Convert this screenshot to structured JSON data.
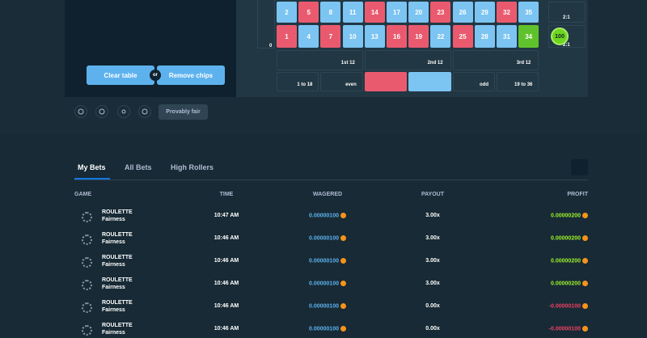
{
  "game": {
    "left_panel": {
      "buttons": [
        "Clear table",
        "Remove chips"
      ],
      "separator": "or"
    },
    "board": {
      "rows": [
        [
          {
            "label": 2,
            "color": "#7cc4f2"
          },
          {
            "label": 5,
            "color": "#ea5a6f"
          },
          {
            "label": 8,
            "color": "#7cc4f2"
          },
          {
            "label": 11,
            "color": "#7cc4f2"
          },
          {
            "label": 14,
            "color": "#ea5a6f"
          },
          {
            "label": 17,
            "color": "#7cc4f2"
          },
          {
            "label": 20,
            "color": "#7cc4f2"
          },
          {
            "label": 23,
            "color": "#ea5a6f"
          },
          {
            "label": 26,
            "color": "#7cc4f2"
          },
          {
            "label": 29,
            "color": "#7cc4f2"
          },
          {
            "label": 32,
            "color": "#ea5a6f"
          },
          {
            "label": 35,
            "color": "#7cc4f2"
          }
        ],
        [
          {
            "label": 1,
            "color": "#ea5a6f"
          },
          {
            "label": 4,
            "color": "#7cc4f2"
          },
          {
            "label": 7,
            "color": "#ea5a6f"
          },
          {
            "label": 10,
            "color": "#7cc4f2"
          },
          {
            "label": 13,
            "color": "#7cc4f2"
          },
          {
            "label": 16,
            "color": "#ea5a6f"
          },
          {
            "label": 19,
            "color": "#ea5a6f"
          },
          {
            "label": 22,
            "color": "#7cc4f2"
          },
          {
            "label": 25,
            "color": "#ea5a6f"
          },
          {
            "label": 28,
            "color": "#7cc4f2"
          },
          {
            "label": 31,
            "color": "#7cc4f2"
          },
          {
            "label": 34,
            "color": "#5fc22c"
          }
        ]
      ],
      "zero": "0",
      "column_labels": [
        "2:1",
        "2:1"
      ],
      "dozens": [
        "1st 12",
        "2nd 12",
        "3rd 12"
      ],
      "outside": [
        "1 to 18",
        "even",
        "odd",
        "19 to 36"
      ],
      "chip": "100"
    },
    "controls": {
      "fair_button": "Provably fair"
    }
  },
  "bets": {
    "tabs": [
      "My Bets",
      "All Bets",
      "High Rollers"
    ],
    "header": [
      "GAME",
      "TIME",
      "WAGERED",
      "PAYOUT",
      "PROFIT"
    ],
    "rows": [
      {
        "game": "ROULETTE",
        "detail": "Fairness",
        "time": "10:47 AM",
        "wagered": "0.00000100",
        "payout": "3.00x",
        "profit": "0.00000200"
      },
      {
        "game": "ROULETTE",
        "detail": "Fairness",
        "time": "10:46 AM",
        "wagered": "0.00000100",
        "payout": "3.00x",
        "profit": "0.00000200"
      },
      {
        "game": "ROULETTE",
        "detail": "Fairness",
        "time": "10:46 AM",
        "wagered": "0.00000100",
        "payout": "3.00x",
        "profit": "0.00000200"
      },
      {
        "game": "ROULETTE",
        "detail": "Fairness",
        "time": "10:46 AM",
        "wagered": "0.00000100",
        "payout": "3.00x",
        "profit": "0.00000200"
      },
      {
        "game": "ROULETTE",
        "detail": "Fairness",
        "time": "10:46 AM",
        "wagered": "0.00000100",
        "payout": "0.00x",
        "profit": "-0.00000100"
      },
      {
        "game": "ROULETTE",
        "detail": "Fairness",
        "time": "10:46 AM",
        "wagered": "0.00000100",
        "payout": "0.00x",
        "profit": "-0.00000100"
      }
    ]
  }
}
